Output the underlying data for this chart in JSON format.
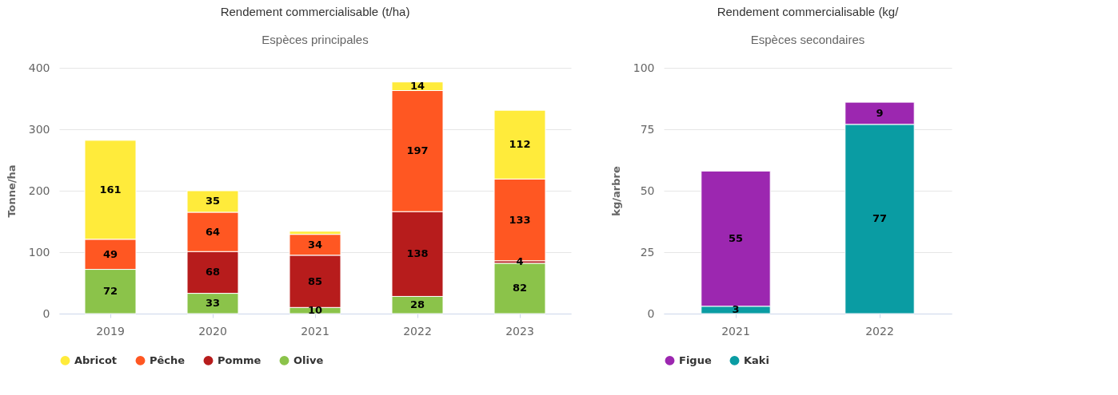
{
  "chart_data": [
    {
      "type": "bar",
      "title": "Rendement commercialisable (t/ha)",
      "subtitle": "Espèces principales",
      "ylabel": "Tonne/ha",
      "categories": [
        "2019",
        "2020",
        "2021",
        "2022",
        "2023"
      ],
      "stacked": true,
      "legend": "bottom",
      "grid": "y",
      "ylim": [
        0,
        400
      ],
      "yticks": [
        0,
        100,
        200,
        300,
        400
      ],
      "series": [
        {
          "name": "Olive",
          "color": "#8bc34a",
          "values": [
            72,
            33,
            10,
            28,
            82
          ],
          "value_labels": [
            "72",
            "33",
            "10",
            "28",
            "82"
          ]
        },
        {
          "name": "Pomme",
          "color": "#b71c1c",
          "values": [
            null,
            68,
            85,
            138,
            4
          ],
          "value_labels": [
            null,
            "68",
            "85",
            "138",
            "4"
          ]
        },
        {
          "name": "Pêche",
          "color": "#ff5722",
          "values": [
            49,
            64,
            34,
            197,
            133
          ],
          "value_labels": [
            "49",
            "64",
            "34",
            "197",
            "133"
          ]
        },
        {
          "name": "Abricot",
          "color": "#ffeb3b",
          "values": [
            161,
            35,
            5,
            14,
            112
          ],
          "value_labels": [
            "161",
            "35",
            null,
            "14",
            "112"
          ]
        }
      ]
    },
    {
      "type": "bar",
      "title": "Rendement commercialisable (kg/",
      "subtitle": "Espèces secondaires",
      "ylabel": "kg/arbre",
      "categories": [
        "2021",
        "2022"
      ],
      "stacked": true,
      "legend": "bottom",
      "grid": "y",
      "ylim": [
        0,
        100
      ],
      "yticks": [
        0,
        25,
        50,
        75,
        100
      ],
      "series": [
        {
          "name": "Kaki",
          "color": "#0a9ca3",
          "values": [
            3,
            77
          ],
          "value_labels": [
            "3",
            "77"
          ]
        },
        {
          "name": "Figue",
          "color": "#9c27b0",
          "values": [
            55,
            9
          ],
          "value_labels": [
            "55",
            "9"
          ]
        }
      ]
    }
  ]
}
